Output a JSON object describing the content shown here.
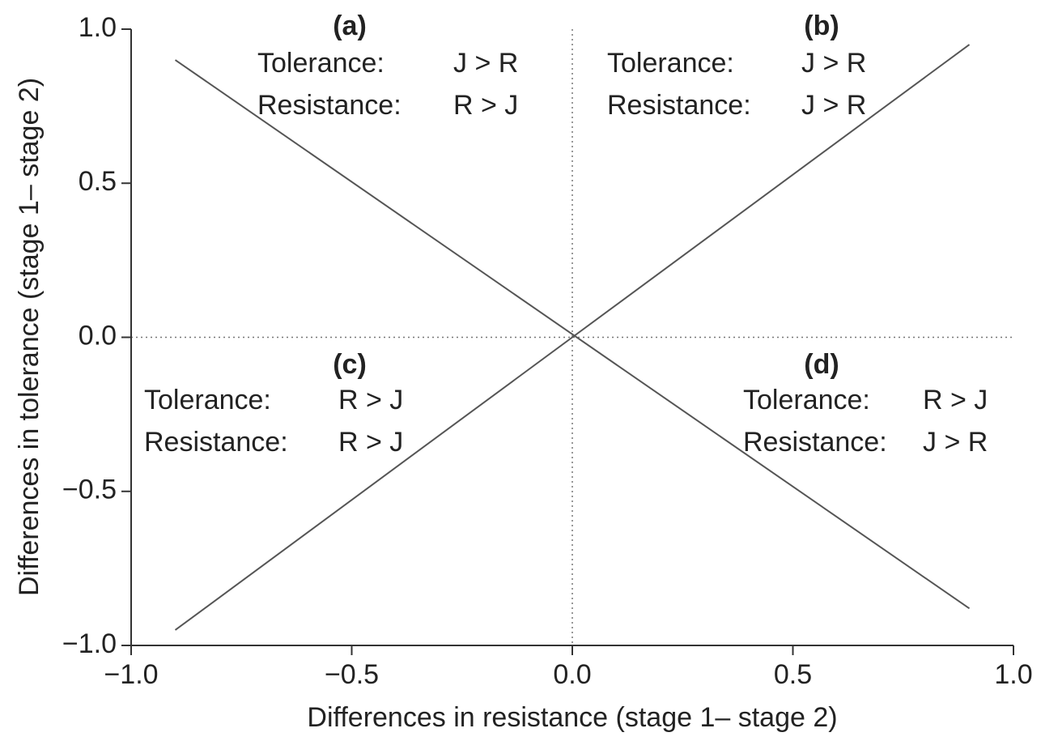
{
  "chart_data": {
    "type": "line",
    "x_label": "Differences in resistance (stage 1– stage 2)",
    "y_label": "Differences in tolerance (stage 1– stage 2)",
    "x": [
      -0.9,
      0.9
    ],
    "series": [
      {
        "color": "#555555",
        "values": [
          0.9,
          -0.88
        ]
      },
      {
        "color": "#555555",
        "values": [
          -0.95,
          0.95
        ]
      }
    ],
    "xlim": [
      -1.0,
      1.0
    ],
    "ylim": [
      -1.0,
      1.0
    ],
    "xticks": [
      {
        "value": -1.0,
        "label": "−1.0"
      },
      {
        "value": -0.5,
        "label": "−0.5"
      },
      {
        "value": 0.0,
        "label": "0.0"
      },
      {
        "value": 0.5,
        "label": "0.5"
      },
      {
        "value": 1.0,
        "label": "1.0"
      }
    ],
    "yticks": [
      {
        "value": -1.0,
        "label": "−1.0"
      },
      {
        "value": -0.5,
        "label": "−0.5"
      },
      {
        "value": 0.0,
        "label": "0.0"
      },
      {
        "value": 0.5,
        "label": "0.5"
      },
      {
        "value": 1.0,
        "label": "1.0"
      }
    ],
    "reference_lines": {
      "x": 0,
      "y": 0
    },
    "annotations": [
      {
        "label": "(a)",
        "rows": [
          [
            "Tolerance:",
            "J > R"
          ],
          [
            "Resistance:",
            "R > J"
          ]
        ]
      },
      {
        "label": "(b)",
        "rows": [
          [
            "Tolerance:",
            "J > R"
          ],
          [
            "Resistance:",
            "J > R"
          ]
        ]
      },
      {
        "label": "(c)",
        "rows": [
          [
            "Tolerance:",
            "R > J"
          ],
          [
            "Resistance:",
            "R > J"
          ]
        ]
      },
      {
        "label": "(d)",
        "rows": [
          [
            "Tolerance:",
            "R > J"
          ],
          [
            "Resistance:",
            "J > R"
          ]
        ]
      }
    ]
  }
}
